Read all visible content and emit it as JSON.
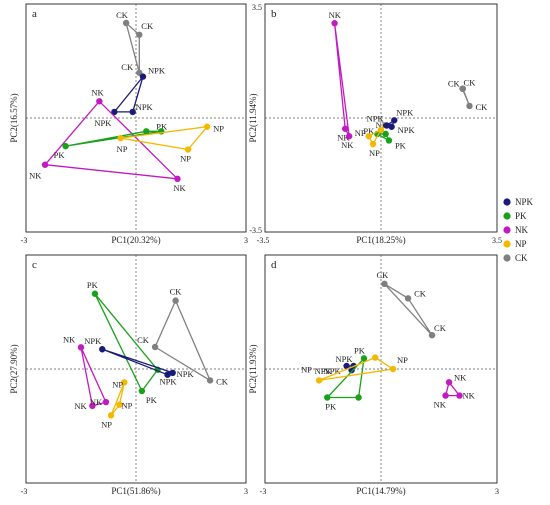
{
  "colors": {
    "NPK": "#1a1a7a",
    "PK": "#1aa11a",
    "NK": "#c21ac2",
    "NP": "#f5b800",
    "CK": "#808080"
  },
  "legend": {
    "placement": "right",
    "items": [
      {
        "group": "NPK",
        "label": "NPK"
      },
      {
        "group": "PK",
        "label": "PK"
      },
      {
        "group": "NK",
        "label": "NK"
      },
      {
        "group": "NP",
        "label": "NP"
      },
      {
        "group": "CK",
        "label": "CK"
      }
    ]
  },
  "chart_data": [
    {
      "type": "scatter",
      "panel": "a",
      "xlabel": "PC1(20.32%)",
      "ylabel": "PC2(16.57%)",
      "xlim": [
        -3,
        3
      ],
      "ylim": [
        -3,
        3
      ],
      "xticks": [
        "-3",
        "3"
      ],
      "yticks": [],
      "grid": false,
      "groups": [
        {
          "group": "CK",
          "points": [
            {
              "x": -0.27,
              "y": 2.5,
              "label": "CK"
            },
            {
              "x": 0.09,
              "y": 2.19,
              "label": "CK"
            },
            {
              "x": 0.09,
              "y": 1.19,
              "label": "CK"
            }
          ]
        },
        {
          "group": "NPK",
          "points": [
            {
              "x": 0.19,
              "y": 1.09,
              "label": "NPK"
            },
            {
              "x": -0.59,
              "y": 0.16,
              "label": "NPK"
            },
            {
              "x": -0.09,
              "y": 0.16,
              "label": "NPK"
            }
          ]
        },
        {
          "group": "NK",
          "points": [
            {
              "x": -1.0,
              "y": 0.44,
              "label": "NK"
            },
            {
              "x": -2.48,
              "y": -1.23,
              "label": "NK"
            },
            {
              "x": 1.13,
              "y": -1.6,
              "label": "NK"
            }
          ]
        },
        {
          "group": "PK",
          "points": [
            {
              "x": -1.92,
              "y": -0.74,
              "label": "PK"
            },
            {
              "x": 0.28,
              "y": -0.35,
              "label": "PK"
            },
            {
              "x": 0.69,
              "y": -0.35,
              "label": ""
            }
          ]
        },
        {
          "group": "NP",
          "points": [
            {
              "x": -0.42,
              "y": -0.53,
              "label": "NP"
            },
            {
              "x": 1.94,
              "y": -0.23,
              "label": "NP"
            },
            {
              "x": 1.42,
              "y": -0.83,
              "label": "NP"
            }
          ]
        }
      ]
    },
    {
      "type": "scatter",
      "panel": "b",
      "xlabel": "PC1(18.25%)",
      "ylabel": "PC2(11.94%)",
      "xlim": [
        -3.5,
        3.5
      ],
      "ylim": [
        -3.5,
        3.5
      ],
      "xticks": [
        "-3.5",
        "3.5"
      ],
      "yticks": [
        "3.5",
        "-3.5"
      ],
      "grid": false,
      "groups": [
        {
          "group": "NK",
          "points": [
            {
              "x": -1.4,
              "y": 2.91,
              "label": "NK"
            },
            {
              "x": -1.08,
              "y": -0.33,
              "label": "NK"
            },
            {
              "x": -0.96,
              "y": -0.56,
              "label": "NK"
            }
          ]
        },
        {
          "group": "CK",
          "points": [
            {
              "x": 2.47,
              "y": 0.9,
              "label": "CK"
            },
            {
              "x": 2.67,
              "y": 0.37,
              "label": "CK"
            },
            {
              "x": 2.46,
              "y": 0.9,
              "label": "CK"
            }
          ]
        },
        {
          "group": "NPK",
          "points": [
            {
              "x": 0.17,
              "y": -0.23,
              "label": "NPK"
            },
            {
              "x": 0.4,
              "y": -0.07,
              "label": "NPK"
            },
            {
              "x": 0.32,
              "y": -0.27,
              "label": "NPK"
            }
          ]
        },
        {
          "group": "PK",
          "points": [
            {
              "x": -0.11,
              "y": -0.49,
              "label": "PK"
            },
            {
              "x": 0.14,
              "y": -0.49,
              "label": "NP"
            },
            {
              "x": 0.24,
              "y": -0.69,
              "label": "PK"
            }
          ]
        },
        {
          "group": "NP",
          "points": [
            {
              "x": -0.37,
              "y": -0.56,
              "label": "NP"
            },
            {
              "x": -0.24,
              "y": -0.8,
              "label": "NP"
            },
            {
              "x": 0.0,
              "y": -0.36,
              "label": ""
            }
          ]
        }
      ]
    },
    {
      "type": "scatter",
      "panel": "c",
      "xlabel": "PC1(51.86%)",
      "ylabel": "PC2(27.90%)",
      "xlim": [
        -3,
        3
      ],
      "ylim": [
        -3,
        3
      ],
      "xticks": [
        "-3",
        "3"
      ],
      "yticks": [],
      "grid": false,
      "groups": [
        {
          "group": "CK",
          "points": [
            {
              "x": 1.08,
              "y": 1.8,
              "label": "CK"
            },
            {
              "x": 0.52,
              "y": 0.58,
              "label": "CK"
            },
            {
              "x": 2.02,
              "y": -0.3,
              "label": "CK"
            }
          ]
        },
        {
          "group": "PK",
          "points": [
            {
              "x": -1.12,
              "y": 1.98,
              "label": "PK"
            },
            {
              "x": 0.59,
              "y": -0.02,
              "label": ""
            },
            {
              "x": 0.16,
              "y": -0.58,
              "label": "PK"
            }
          ]
        },
        {
          "group": "NK",
          "points": [
            {
              "x": -1.5,
              "y": 0.57,
              "label": "NK"
            },
            {
              "x": -1.19,
              "y": -0.97,
              "label": "NK"
            },
            {
              "x": -0.82,
              "y": -0.87,
              "label": "NK"
            }
          ]
        },
        {
          "group": "NPK",
          "points": [
            {
              "x": -0.92,
              "y": 0.52,
              "label": "NPK"
            },
            {
              "x": 1.0,
              "y": -0.1,
              "label": "NPK"
            },
            {
              "x": 0.86,
              "y": -0.15,
              "label": "NPK"
            }
          ]
        },
        {
          "group": "NP",
          "points": [
            {
              "x": -0.32,
              "y": -0.35,
              "label": "NP"
            },
            {
              "x": -0.68,
              "y": -1.22,
              "label": "NP"
            },
            {
              "x": -0.45,
              "y": -0.94,
              "label": "NP"
            }
          ]
        }
      ]
    },
    {
      "type": "scatter",
      "panel": "d",
      "xlabel": "PC1(14.79%)",
      "ylabel": "PC2(11.93%)",
      "xlim": [
        -3,
        3
      ],
      "ylim": [
        -3,
        3
      ],
      "xticks": [
        "-3",
        "3"
      ],
      "yticks": [],
      "grid": false,
      "groups": [
        {
          "group": "CK",
          "points": [
            {
              "x": 0.09,
              "y": 2.24,
              "label": "CK"
            },
            {
              "x": 0.7,
              "y": 1.86,
              "label": "CK"
            },
            {
              "x": 1.32,
              "y": 0.89,
              "label": "CK"
            }
          ]
        },
        {
          "group": "NPK",
          "points": [
            {
              "x": -0.71,
              "y": 0.08,
              "label": "NPK"
            },
            {
              "x": -0.76,
              "y": -0.03,
              "label": "NPK"
            },
            {
              "x": -0.89,
              "y": 0.08,
              "label": "NPK"
            }
          ]
        },
        {
          "group": "PK",
          "points": [
            {
              "x": -1.39,
              "y": -0.75,
              "label": "PK"
            },
            {
              "x": -0.44,
              "y": 0.28,
              "label": "PK"
            },
            {
              "x": -0.58,
              "y": -0.75,
              "label": ""
            }
          ]
        },
        {
          "group": "NK",
          "points": [
            {
              "x": 1.76,
              "y": -0.35,
              "label": "NK"
            },
            {
              "x": 1.67,
              "y": -0.7,
              "label": "NK"
            },
            {
              "x": 2.03,
              "y": -0.7,
              "label": "NK"
            }
          ]
        },
        {
          "group": "NP",
          "points": [
            {
              "x": -1.6,
              "y": -0.3,
              "label": "NP"
            },
            {
              "x": -0.15,
              "y": 0.3,
              "label": ""
            },
            {
              "x": 0.31,
              "y": 0.0,
              "label": "NP"
            }
          ]
        }
      ]
    }
  ]
}
